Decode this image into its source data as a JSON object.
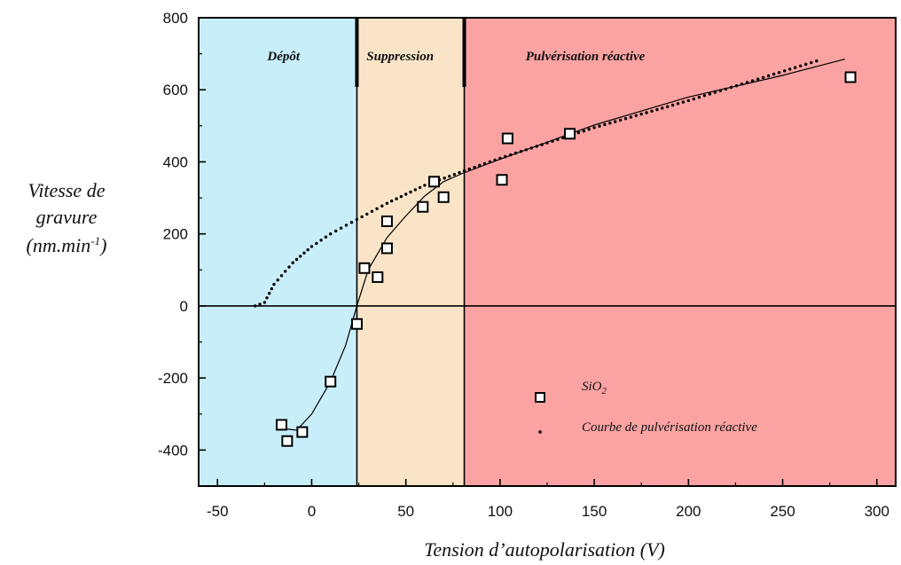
{
  "chart_data": {
    "type": "scatter",
    "xlabel": "Tension d’autopolarisation (V)",
    "ylabel": {
      "line1": "Vitesse de",
      "line2": "gravure",
      "line3": "(nm.min",
      "sup": "-1",
      "close": ")"
    },
    "xlim": [
      -60,
      310
    ],
    "ylim": [
      -500,
      800
    ],
    "x_ticks": [
      -50,
      0,
      50,
      100,
      150,
      200,
      250,
      300
    ],
    "y_ticks": [
      -400,
      -200,
      0,
      200,
      400,
      600,
      800
    ],
    "grid": false,
    "regions": [
      {
        "label": "Dépôt",
        "x_from": -60,
        "x_to": 24,
        "color": "#c8eefa"
      },
      {
        "label": "Suppression",
        "x_from": 24,
        "x_to": 81,
        "color": "#f9e4c8"
      },
      {
        "label": "Pulvérisation réactive",
        "x_from": 81,
        "x_to": 310,
        "color": "#fba3a3"
      }
    ],
    "series": [
      {
        "name": "SiO₂",
        "kind": "markers",
        "points": [
          [
            -16,
            -330
          ],
          [
            -13,
            -375
          ],
          [
            -5,
            -350
          ],
          [
            10,
            -210
          ],
          [
            24,
            -50
          ],
          [
            28,
            105
          ],
          [
            35,
            80
          ],
          [
            40,
            235
          ],
          [
            40,
            160
          ],
          [
            59,
            275
          ],
          [
            65,
            345
          ],
          [
            70,
            302
          ],
          [
            101,
            350
          ],
          [
            104,
            465
          ],
          [
            137,
            478
          ],
          [
            286,
            635
          ]
        ]
      },
      {
        "name": "",
        "kind": "fit-line",
        "points": [
          [
            -16,
            -340
          ],
          [
            -8,
            -345
          ],
          [
            0,
            -300
          ],
          [
            10,
            -210
          ],
          [
            18,
            -110
          ],
          [
            24,
            0
          ],
          [
            30,
            100
          ],
          [
            40,
            190
          ],
          [
            50,
            250
          ],
          [
            60,
            305
          ],
          [
            70,
            345
          ],
          [
            80,
            368
          ],
          [
            100,
            407
          ],
          [
            150,
            502
          ],
          [
            200,
            580
          ],
          [
            250,
            640
          ],
          [
            283,
            685
          ]
        ]
      },
      {
        "name": "Courbe de pulvérisation réactive",
        "kind": "dotted",
        "points": [
          [
            -30,
            0
          ],
          [
            -25,
            10
          ],
          [
            -20,
            60
          ],
          [
            -10,
            120
          ],
          [
            0,
            165
          ],
          [
            10,
            200
          ],
          [
            24,
            240
          ],
          [
            40,
            285
          ],
          [
            60,
            335
          ],
          [
            81,
            375
          ],
          [
            100,
            410
          ],
          [
            150,
            495
          ],
          [
            200,
            570
          ],
          [
            268,
            680
          ]
        ]
      }
    ],
    "legend": [
      {
        "marker": "square",
        "label": "SiO",
        "sub": "2"
      },
      {
        "marker": "dot",
        "label": "Courbe de pulvérisation réactive"
      }
    ]
  }
}
